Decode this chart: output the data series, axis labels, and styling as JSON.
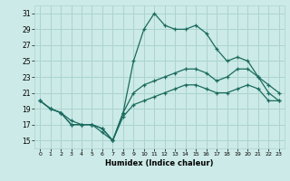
{
  "title": "",
  "xlabel": "Humidex (Indice chaleur)",
  "background_color": "#cceae7",
  "grid_color": "#aad4d0",
  "line_color": "#1a6b5e",
  "xlim": [
    -0.5,
    23.5
  ],
  "ylim": [
    14,
    32
  ],
  "xticks": [
    0,
    1,
    2,
    3,
    4,
    5,
    6,
    7,
    8,
    9,
    10,
    11,
    12,
    13,
    14,
    15,
    16,
    17,
    18,
    19,
    20,
    21,
    22,
    23
  ],
  "yticks": [
    15,
    17,
    19,
    21,
    23,
    25,
    27,
    29,
    31
  ],
  "line1_x": [
    0,
    1,
    2,
    3,
    4,
    5,
    6,
    7,
    8,
    9,
    10,
    11,
    12,
    13,
    14,
    15,
    16,
    17,
    18,
    19,
    20,
    21,
    22,
    23
  ],
  "line1_y": [
    20,
    19,
    18.5,
    17.5,
    17,
    17,
    16,
    15,
    18.5,
    25,
    29,
    31,
    29.5,
    29,
    29,
    29.5,
    28.5,
    26.5,
    25,
    25.5,
    25,
    23,
    21,
    20
  ],
  "line2_x": [
    0,
    1,
    2,
    3,
    4,
    5,
    6,
    7,
    8,
    9,
    10,
    11,
    12,
    13,
    14,
    15,
    16,
    17,
    18,
    19,
    20,
    21,
    22,
    23
  ],
  "line2_y": [
    20,
    19,
    18.5,
    17,
    17,
    17,
    16.5,
    15,
    18.5,
    21,
    22,
    22.5,
    23,
    23.5,
    24,
    24,
    23.5,
    22.5,
    23,
    24,
    24,
    23,
    22,
    21
  ],
  "line3_x": [
    0,
    1,
    2,
    3,
    4,
    5,
    6,
    7,
    8,
    9,
    10,
    11,
    12,
    13,
    14,
    15,
    16,
    17,
    18,
    19,
    20,
    21,
    22,
    23
  ],
  "line3_y": [
    20,
    19,
    18.5,
    17,
    17,
    17,
    16.5,
    15,
    18,
    19.5,
    20,
    20.5,
    21,
    21.5,
    22,
    22,
    21.5,
    21,
    21,
    21.5,
    22,
    21.5,
    20,
    20
  ]
}
